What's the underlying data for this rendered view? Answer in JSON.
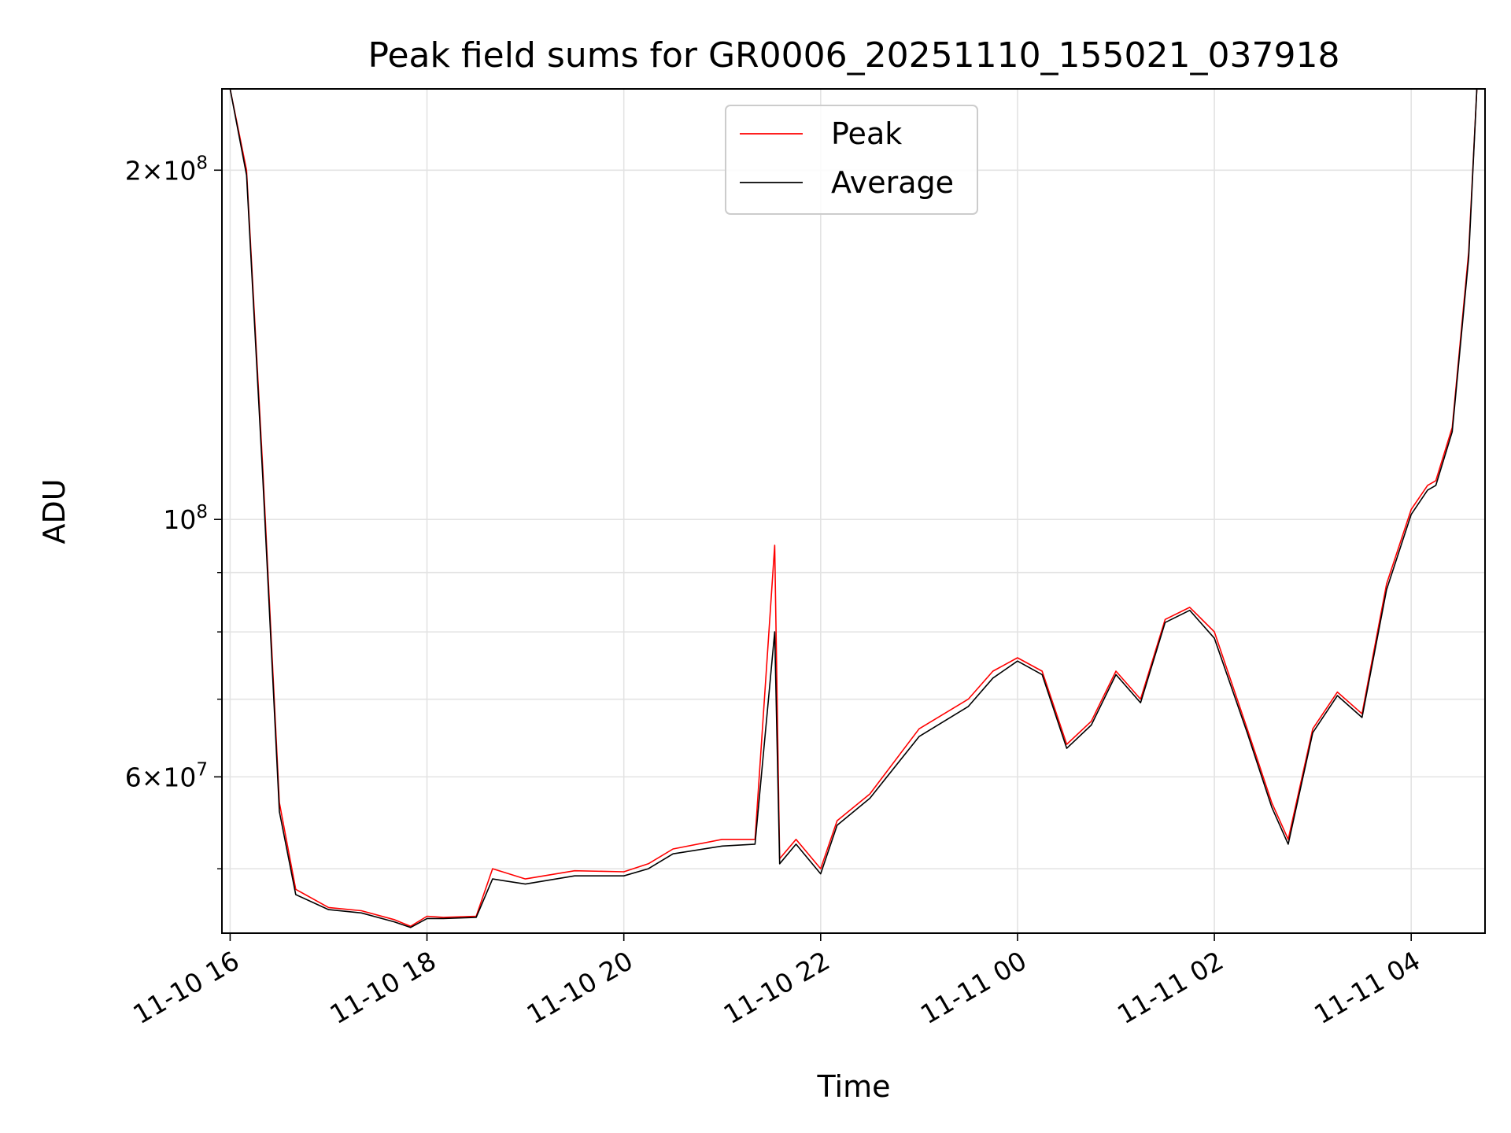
{
  "chart_data": {
    "type": "line",
    "title": "Peak field sums for GR0006_20251110_155021_037918",
    "xlabel": "Time",
    "ylabel": "ADU",
    "x_axis": {
      "type": "datetime",
      "range": [
        "2025-11-10 15:55",
        "2025-11-11 04:45"
      ],
      "tick_labels": [
        "11-10 16",
        "11-10 18",
        "11-10 20",
        "11-10 22",
        "11-11 00",
        "11-11 02",
        "11-11 04"
      ]
    },
    "y_axis": {
      "scale": "log",
      "range": [
        44000000,
        235000000
      ],
      "tick_values": [
        60000000,
        100000000,
        200000000
      ],
      "tick_labels": [
        {
          "mantissa": "6×10",
          "exp": "7"
        },
        {
          "mantissa": "10",
          "exp": "8"
        },
        {
          "mantissa": "2×10",
          "exp": "8"
        }
      ],
      "minor_ticks": [
        50000000,
        70000000,
        80000000,
        90000000
      ]
    },
    "grid": true,
    "legend": {
      "position": "top-center"
    },
    "series": [
      {
        "name": "Peak",
        "color": "#ff0000",
        "x": [
          "2025-11-10 16:00",
          "2025-11-10 16:10",
          "2025-11-10 16:20",
          "2025-11-10 16:30",
          "2025-11-10 16:40",
          "2025-11-10 17:00",
          "2025-11-10 17:20",
          "2025-11-10 17:40",
          "2025-11-10 17:50",
          "2025-11-10 18:00",
          "2025-11-10 18:10",
          "2025-11-10 18:30",
          "2025-11-10 18:40",
          "2025-11-10 19:00",
          "2025-11-10 19:30",
          "2025-11-10 20:00",
          "2025-11-10 20:15",
          "2025-11-10 20:30",
          "2025-11-10 21:00",
          "2025-11-10 21:20",
          "2025-11-10 21:32",
          "2025-11-10 21:35",
          "2025-11-10 21:45",
          "2025-11-10 22:00",
          "2025-11-10 22:10",
          "2025-11-10 22:30",
          "2025-11-10 23:00",
          "2025-11-10 23:30",
          "2025-11-10 23:45",
          "2025-11-11 00:00",
          "2025-11-11 00:15",
          "2025-11-11 00:30",
          "2025-11-11 00:45",
          "2025-11-11 01:00",
          "2025-11-11 01:15",
          "2025-11-11 01:30",
          "2025-11-11 01:45",
          "2025-11-11 02:00",
          "2025-11-11 02:20",
          "2025-11-11 02:35",
          "2025-11-11 02:45",
          "2025-11-11 03:00",
          "2025-11-11 03:15",
          "2025-11-11 03:30",
          "2025-11-11 03:45",
          "2025-11-11 04:00",
          "2025-11-11 04:10",
          "2025-11-11 04:15",
          "2025-11-11 04:25",
          "2025-11-11 04:35",
          "2025-11-11 04:40"
        ],
        "y": [
          235000000,
          200000000,
          110000000,
          57000000,
          48000000,
          46300000,
          46000000,
          45200000,
          44600000,
          45500000,
          45400000,
          45500000,
          50000000,
          49000000,
          49800000,
          49700000,
          50500000,
          52000000,
          53000000,
          53000000,
          95000000,
          51000000,
          53000000,
          50000000,
          55000000,
          58000000,
          66000000,
          70000000,
          74000000,
          76000000,
          74000000,
          64000000,
          67000000,
          74000000,
          70000000,
          82000000,
          84000000,
          80000000,
          66000000,
          57000000,
          53000000,
          66000000,
          71000000,
          68000000,
          88000000,
          102000000,
          107000000,
          108000000,
          120000000,
          170000000,
          235000000
        ]
      },
      {
        "name": "Average",
        "color": "#000000",
        "x": [
          "2025-11-10 16:00",
          "2025-11-10 16:10",
          "2025-11-10 16:20",
          "2025-11-10 16:30",
          "2025-11-10 16:40",
          "2025-11-10 17:00",
          "2025-11-10 17:20",
          "2025-11-10 17:40",
          "2025-11-10 17:50",
          "2025-11-10 18:00",
          "2025-11-10 18:10",
          "2025-11-10 18:30",
          "2025-11-10 18:40",
          "2025-11-10 19:00",
          "2025-11-10 19:30",
          "2025-11-10 20:00",
          "2025-11-10 20:15",
          "2025-11-10 20:30",
          "2025-11-10 21:00",
          "2025-11-10 21:20",
          "2025-11-10 21:32",
          "2025-11-10 21:35",
          "2025-11-10 21:45",
          "2025-11-10 22:00",
          "2025-11-10 22:10",
          "2025-11-10 22:30",
          "2025-11-10 23:00",
          "2025-11-10 23:30",
          "2025-11-10 23:45",
          "2025-11-11 00:00",
          "2025-11-11 00:15",
          "2025-11-11 00:30",
          "2025-11-11 00:45",
          "2025-11-11 01:00",
          "2025-11-11 01:15",
          "2025-11-11 01:30",
          "2025-11-11 01:45",
          "2025-11-11 02:00",
          "2025-11-11 02:20",
          "2025-11-11 02:35",
          "2025-11-11 02:45",
          "2025-11-11 03:00",
          "2025-11-11 03:15",
          "2025-11-11 03:30",
          "2025-11-11 03:45",
          "2025-11-11 04:00",
          "2025-11-11 04:10",
          "2025-11-11 04:15",
          "2025-11-11 04:25",
          "2025-11-11 04:35",
          "2025-11-11 04:40"
        ],
        "y": [
          235000000,
          198000000,
          108000000,
          56000000,
          47500000,
          46100000,
          45800000,
          45000000,
          44500000,
          45300000,
          45300000,
          45400000,
          49000000,
          48500000,
          49300000,
          49300000,
          50000000,
          51500000,
          52300000,
          52500000,
          80000000,
          50500000,
          52500000,
          49500000,
          54500000,
          57500000,
          65000000,
          69000000,
          73000000,
          75500000,
          73500000,
          63500000,
          66500000,
          73500000,
          69500000,
          81500000,
          83500000,
          79000000,
          65500000,
          56500000,
          52500000,
          65500000,
          70500000,
          67500000,
          87000000,
          101000000,
          106000000,
          107000000,
          119000000,
          168000000,
          235000000
        ]
      }
    ]
  }
}
